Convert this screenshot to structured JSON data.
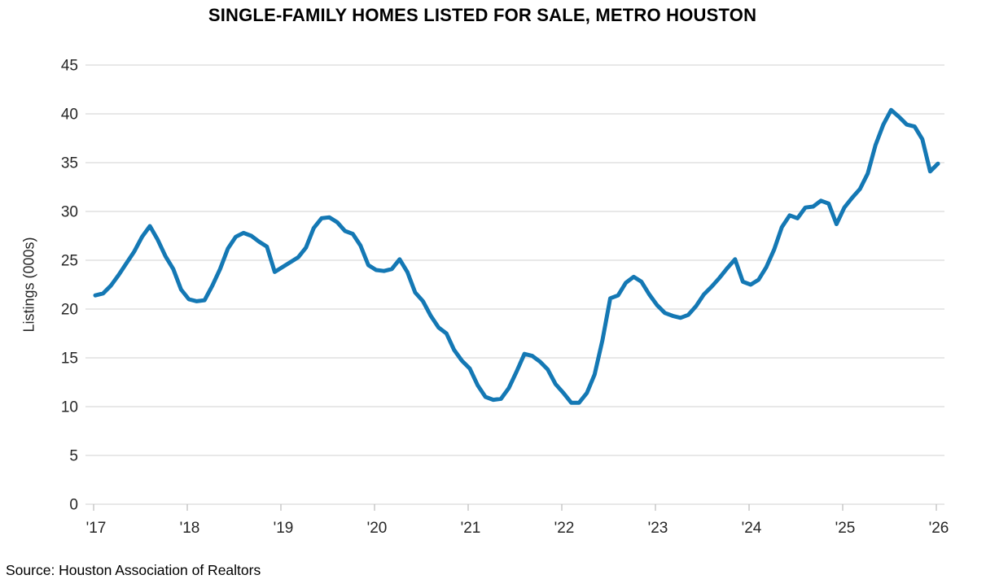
{
  "title": "SINGLE-FAMILY HOMES LISTED FOR SALE, METRO HOUSTON",
  "source": "Source: Houston Association of Realtors",
  "chart_data": {
    "type": "line",
    "title": "SINGLE-FAMILY HOMES LISTED FOR SALE, METRO HOUSTON",
    "xlabel": "",
    "ylabel": "Listings (000s)",
    "frequency": "monthly",
    "x_start": "2017-01",
    "x_end": "2026-01",
    "x_tick_labels": [
      "'17",
      "'18",
      "'19",
      "'20",
      "'21",
      "'22",
      "'23",
      "'24",
      "'25",
      "'26"
    ],
    "y_ticks": [
      0,
      5,
      10,
      15,
      20,
      25,
      30,
      35,
      40,
      45
    ],
    "ylim": [
      0,
      45
    ],
    "grid": true,
    "legend": false,
    "line_color": "#1478B4",
    "grid_color": "#D9D9D9",
    "axis_color": "#BFBFBF",
    "series": [
      {
        "name": "Single-family homes listed for sale (thousands)",
        "values": [
          21.4,
          21.6,
          22.4,
          23.5,
          24.7,
          25.9,
          27.4,
          28.5,
          27.1,
          25.4,
          24.1,
          22.0,
          21.0,
          20.8,
          20.9,
          22.4,
          24.1,
          26.2,
          27.4,
          27.8,
          27.5,
          26.9,
          26.4,
          23.8,
          24.3,
          24.8,
          25.3,
          26.3,
          28.3,
          29.3,
          29.4,
          28.9,
          28.0,
          27.7,
          26.5,
          24.5,
          24.0,
          23.9,
          24.1,
          25.1,
          23.8,
          21.7,
          20.8,
          19.3,
          18.1,
          17.5,
          15.8,
          14.7,
          13.9,
          12.2,
          11.0,
          10.7,
          10.8,
          11.9,
          13.6,
          15.4,
          15.2,
          14.6,
          13.8,
          12.3,
          11.4,
          10.4,
          10.4,
          11.4,
          13.3,
          16.8,
          21.1,
          21.4,
          22.7,
          23.3,
          22.8,
          21.5,
          20.4,
          19.6,
          19.3,
          19.1,
          19.4,
          20.3,
          21.5,
          22.3,
          23.2,
          24.2,
          25.1,
          22.8,
          22.5,
          23.0,
          24.3,
          26.1,
          28.4,
          29.6,
          29.3,
          30.4,
          30.5,
          31.1,
          30.8,
          28.7,
          30.4,
          31.4,
          32.3,
          33.9,
          36.8,
          38.9,
          40.4,
          39.7,
          38.9,
          38.7,
          37.4,
          34.1,
          34.9
        ]
      }
    ]
  }
}
